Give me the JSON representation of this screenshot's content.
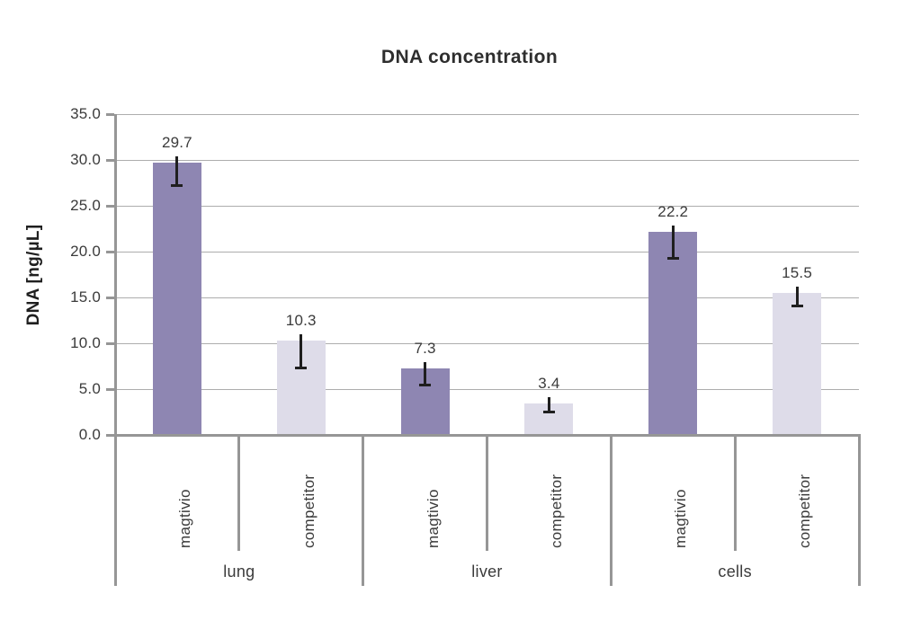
{
  "chart_data": {
    "type": "bar",
    "title": "DNA concentration",
    "xlabel": "",
    "ylabel": "DNA [ng/µL]",
    "ylim": [
      0,
      35
    ],
    "ytick_step": 5,
    "ytick_labels": [
      "35.0",
      "30.0",
      "25.0",
      "20.0",
      "15.0",
      "10.0",
      "5.0",
      "0.0"
    ],
    "grid": true,
    "legend": "none",
    "groups": [
      "lung",
      "liver",
      "cells"
    ],
    "series_per_group": [
      "magtivio",
      "competitor"
    ],
    "bars": [
      {
        "group": "lung",
        "series": "magtivio",
        "value": 29.7,
        "label": "29.7",
        "err_minus": 2.5
      },
      {
        "group": "lung",
        "series": "competitor",
        "value": 10.3,
        "label": "10.3",
        "err_minus": 3.0
      },
      {
        "group": "liver",
        "series": "magtivio",
        "value": 7.3,
        "label": "7.3",
        "err_minus": 1.9
      },
      {
        "group": "liver",
        "series": "competitor",
        "value": 3.4,
        "label": "3.4",
        "err_minus": 0.9
      },
      {
        "group": "cells",
        "series": "magtivio",
        "value": 22.2,
        "label": "22.2",
        "err_minus": 2.9
      },
      {
        "group": "cells",
        "series": "competitor",
        "value": 15.5,
        "label": "15.5",
        "err_minus": 1.4
      }
    ],
    "colors": {
      "magtivio_bar": "#8e86b2",
      "competitor_bar": "#dedce9",
      "gridline": "#adadad",
      "axis_line": "#969696",
      "error_bar": "#1f1f1f",
      "text": "#3b3b3b",
      "title_text": "#2e2e2e"
    }
  }
}
